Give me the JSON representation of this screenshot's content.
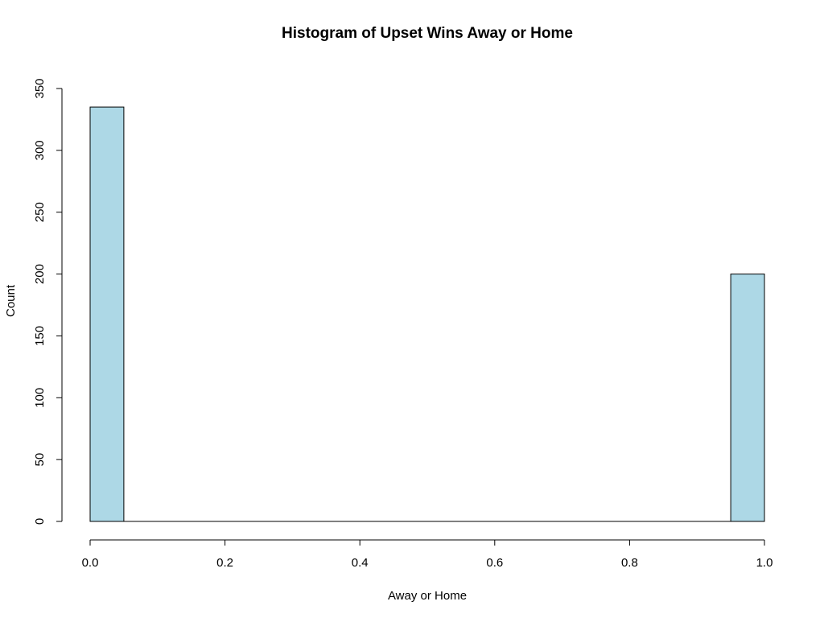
{
  "chart_data": {
    "type": "bar",
    "title": "Histogram of Upset Wins Away or Home",
    "xlabel": "Away or Home",
    "ylabel": "Count",
    "bins": [
      {
        "x0": 0.0,
        "x1": 0.05,
        "count": 335
      },
      {
        "x0": 0.05,
        "x1": 0.1,
        "count": 0
      },
      {
        "x0": 0.1,
        "x1": 0.15,
        "count": 0
      },
      {
        "x0": 0.15,
        "x1": 0.2,
        "count": 0
      },
      {
        "x0": 0.2,
        "x1": 0.25,
        "count": 0
      },
      {
        "x0": 0.25,
        "x1": 0.3,
        "count": 0
      },
      {
        "x0": 0.3,
        "x1": 0.35,
        "count": 0
      },
      {
        "x0": 0.35,
        "x1": 0.4,
        "count": 0
      },
      {
        "x0": 0.4,
        "x1": 0.45,
        "count": 0
      },
      {
        "x0": 0.45,
        "x1": 0.5,
        "count": 0
      },
      {
        "x0": 0.5,
        "x1": 0.55,
        "count": 0
      },
      {
        "x0": 0.55,
        "x1": 0.6,
        "count": 0
      },
      {
        "x0": 0.6,
        "x1": 0.65,
        "count": 0
      },
      {
        "x0": 0.65,
        "x1": 0.7,
        "count": 0
      },
      {
        "x0": 0.7,
        "x1": 0.75,
        "count": 0
      },
      {
        "x0": 0.75,
        "x1": 0.8,
        "count": 0
      },
      {
        "x0": 0.8,
        "x1": 0.85,
        "count": 0
      },
      {
        "x0": 0.85,
        "x1": 0.9,
        "count": 0
      },
      {
        "x0": 0.9,
        "x1": 0.95,
        "count": 0
      },
      {
        "x0": 0.95,
        "x1": 1.0,
        "count": 200
      }
    ],
    "xlim": [
      0,
      1
    ],
    "ylim": [
      0,
      350
    ],
    "xticks": [
      "0.0",
      "0.2",
      "0.4",
      "0.6",
      "0.8",
      "1.0"
    ],
    "yticks": [
      "0",
      "50",
      "100",
      "150",
      "200",
      "250",
      "300",
      "350"
    ],
    "grid": false,
    "legend": "none",
    "colors": {
      "bar_fill": "#ADD8E6",
      "bar_stroke": "#000000",
      "axis": "#000000"
    }
  }
}
